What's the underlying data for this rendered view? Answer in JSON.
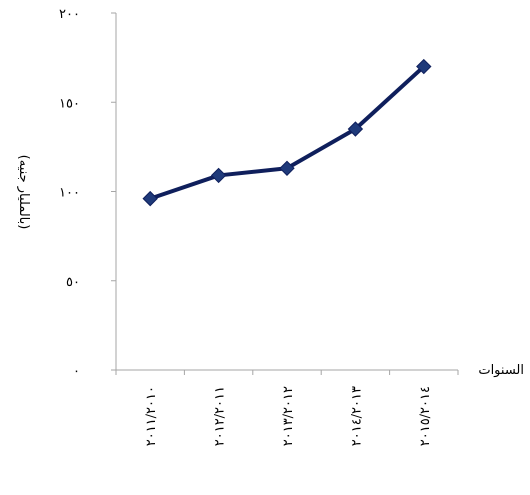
{
  "chart_data": {
    "type": "line",
    "categories": [
      "٢٠١١/٢٠١٠",
      "٢٠١٢/٢٠١١",
      "٢٠١٣/٢٠١٢",
      "٢٠١٤/٢٠١٣",
      "٢٠١٥/٢٠١٤"
    ],
    "values": [
      96,
      109,
      113,
      135,
      170
    ],
    "ylim": [
      0,
      200
    ],
    "yticks": [
      0,
      50,
      100,
      150,
      200
    ],
    "ytick_labels": [
      "٠",
      "٥٠",
      "١٠٠",
      "١٥٠",
      "٢٠٠"
    ],
    "ylabel": "(بالمليار جنيه)",
    "xlabel": "السنوات",
    "grid": false,
    "legend": "none",
    "line_color": "#0f1f5c",
    "marker_color": "#1f3a7a",
    "marker_shape": "diamond"
  }
}
